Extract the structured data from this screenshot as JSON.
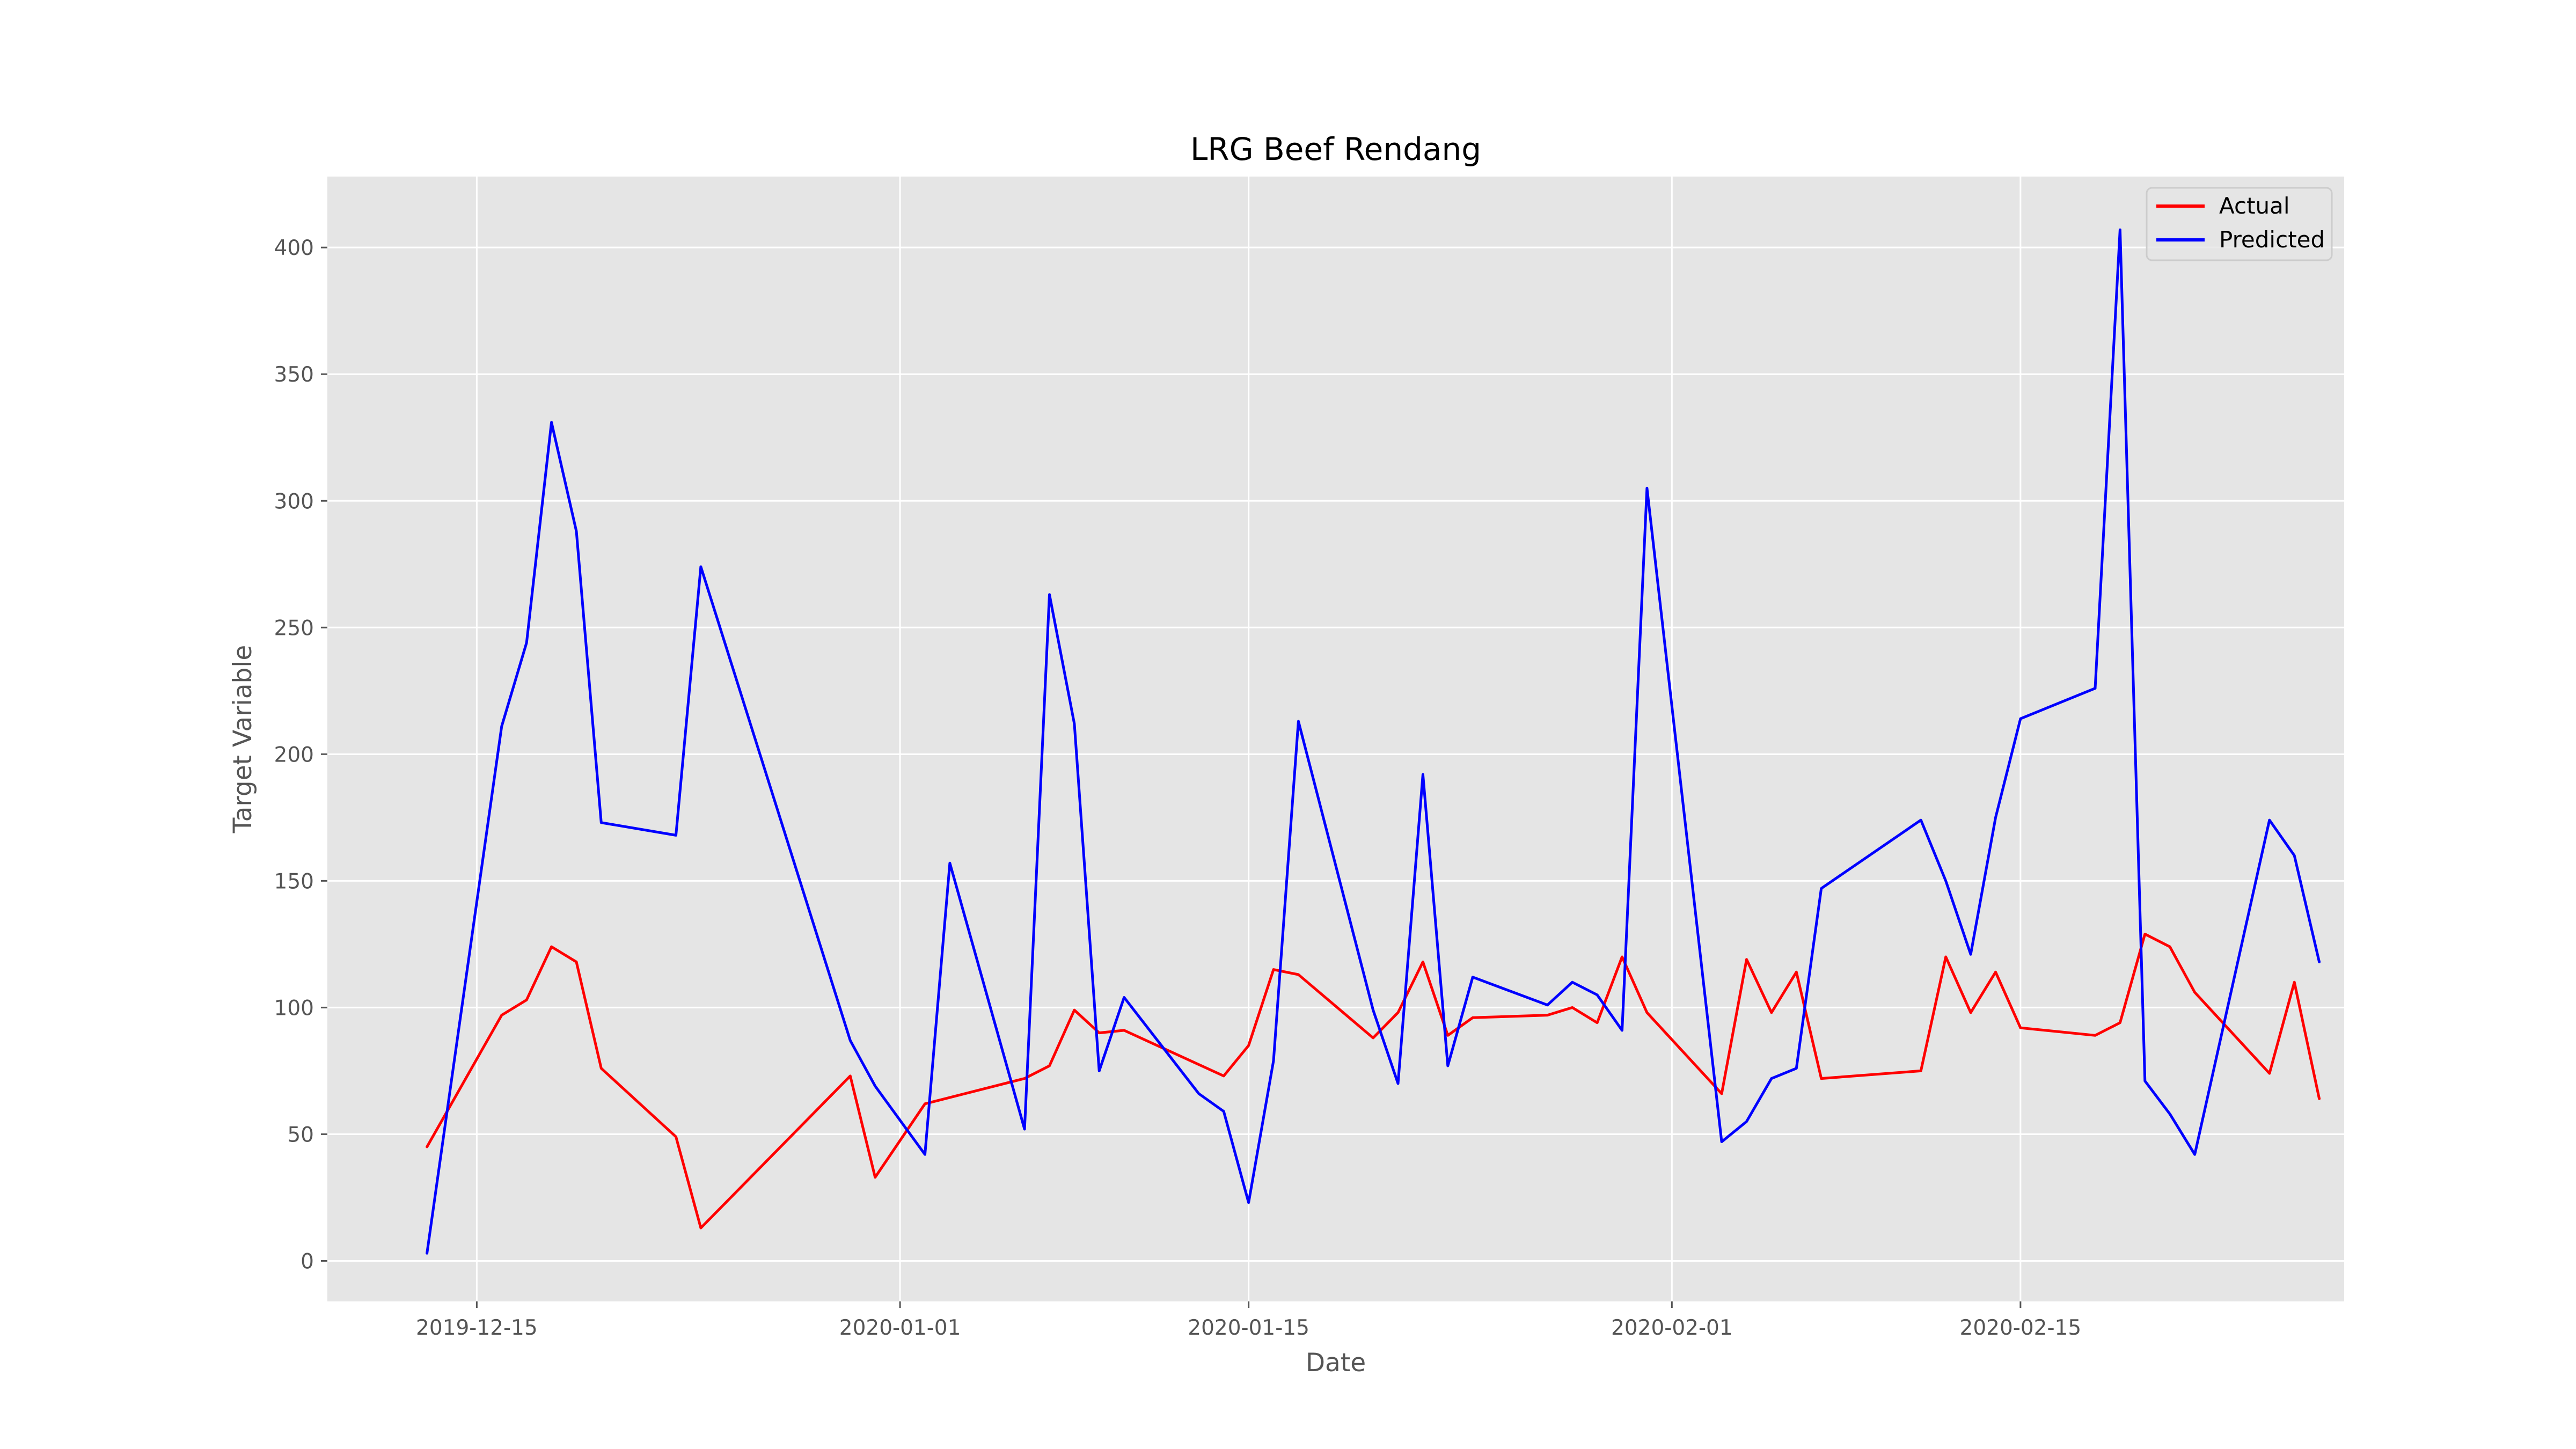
{
  "chart_data": {
    "type": "line",
    "title": "LRG Beef Rendang",
    "xlabel": "Date",
    "ylabel": "Target Variable",
    "x_tick_labels": [
      "2019-12-15",
      "2020-01-01",
      "2020-01-15",
      "2020-02-01",
      "2020-02-15"
    ],
    "y_tick_labels": [
      "0",
      "50",
      "100",
      "150",
      "200",
      "250",
      "300",
      "350",
      "400"
    ],
    "xlim": [
      "2019-12-09",
      "2020-02-28"
    ],
    "ylim": [
      -16,
      428
    ],
    "grid": true,
    "legend_position": "top-right",
    "colors": {
      "background": "#e5e5e5",
      "grid": "#ffffff",
      "Actual": "#ff0000",
      "Predicted": "#0000ff"
    },
    "series": [
      {
        "name": "Actual",
        "color": "#ff0000",
        "points": [
          [
            "2019-12-13",
            45
          ],
          [
            "2019-12-16",
            97
          ],
          [
            "2019-12-17",
            103
          ],
          [
            "2019-12-18",
            124
          ],
          [
            "2019-12-19",
            118
          ],
          [
            "2019-12-20",
            76
          ],
          [
            "2019-12-23",
            49
          ],
          [
            "2019-12-24",
            13
          ],
          [
            "2019-12-30",
            73
          ],
          [
            "2019-12-31",
            33
          ],
          [
            "2020-01-02",
            62
          ],
          [
            "2020-01-06",
            72
          ],
          [
            "2020-01-07",
            77
          ],
          [
            "2020-01-08",
            99
          ],
          [
            "2020-01-09",
            90
          ],
          [
            "2020-01-10",
            91
          ],
          [
            "2020-01-14",
            73
          ],
          [
            "2020-01-15",
            85
          ],
          [
            "2020-01-16",
            115
          ],
          [
            "2020-01-17",
            113
          ],
          [
            "2020-01-20",
            88
          ],
          [
            "2020-01-21",
            98
          ],
          [
            "2020-01-22",
            118
          ],
          [
            "2020-01-23",
            89
          ],
          [
            "2020-01-24",
            96
          ],
          [
            "2020-01-27",
            97
          ],
          [
            "2020-01-28",
            100
          ],
          [
            "2020-01-29",
            94
          ],
          [
            "2020-01-30",
            120
          ],
          [
            "2020-01-31",
            98
          ],
          [
            "2020-02-03",
            66
          ],
          [
            "2020-02-04",
            119
          ],
          [
            "2020-02-05",
            98
          ],
          [
            "2020-02-06",
            114
          ],
          [
            "2020-02-07",
            72
          ],
          [
            "2020-02-11",
            75
          ],
          [
            "2020-02-12",
            120
          ],
          [
            "2020-02-13",
            98
          ],
          [
            "2020-02-14",
            114
          ],
          [
            "2020-02-15",
            92
          ],
          [
            "2020-02-18",
            89
          ],
          [
            "2020-02-19",
            94
          ],
          [
            "2020-02-20",
            129
          ],
          [
            "2020-02-21",
            124
          ],
          [
            "2020-02-22",
            106
          ],
          [
            "2020-02-25",
            74
          ],
          [
            "2020-02-26",
            110
          ],
          [
            "2020-02-27",
            64
          ]
        ]
      },
      {
        "name": "Predicted",
        "color": "#0000ff",
        "points": [
          [
            "2019-12-13",
            3
          ],
          [
            "2019-12-16",
            211
          ],
          [
            "2019-12-17",
            244
          ],
          [
            "2019-12-18",
            331
          ],
          [
            "2019-12-19",
            288
          ],
          [
            "2019-12-20",
            173
          ],
          [
            "2019-12-23",
            168
          ],
          [
            "2019-12-24",
            274
          ],
          [
            "2019-12-30",
            87
          ],
          [
            "2019-12-31",
            69
          ],
          [
            "2020-01-02",
            42
          ],
          [
            "2020-01-03",
            157
          ],
          [
            "2020-01-06",
            52
          ],
          [
            "2020-01-07",
            263
          ],
          [
            "2020-01-08",
            212
          ],
          [
            "2020-01-09",
            75
          ],
          [
            "2020-01-10",
            104
          ],
          [
            "2020-01-13",
            66
          ],
          [
            "2020-01-14",
            59
          ],
          [
            "2020-01-15",
            23
          ],
          [
            "2020-01-16",
            79
          ],
          [
            "2020-01-17",
            213
          ],
          [
            "2020-01-20",
            99
          ],
          [
            "2020-01-21",
            70
          ],
          [
            "2020-01-22",
            192
          ],
          [
            "2020-01-23",
            77
          ],
          [
            "2020-01-24",
            112
          ],
          [
            "2020-01-27",
            101
          ],
          [
            "2020-01-28",
            110
          ],
          [
            "2020-01-29",
            105
          ],
          [
            "2020-01-30",
            91
          ],
          [
            "2020-01-31",
            305
          ],
          [
            "2020-02-03",
            47
          ],
          [
            "2020-02-04",
            55
          ],
          [
            "2020-02-05",
            72
          ],
          [
            "2020-02-06",
            76
          ],
          [
            "2020-02-07",
            147
          ],
          [
            "2020-02-11",
            174
          ],
          [
            "2020-02-12",
            150
          ],
          [
            "2020-02-13",
            121
          ],
          [
            "2020-02-14",
            175
          ],
          [
            "2020-02-15",
            214
          ],
          [
            "2020-02-18",
            226
          ],
          [
            "2020-02-19",
            407
          ],
          [
            "2020-02-20",
            71
          ],
          [
            "2020-02-21",
            58
          ],
          [
            "2020-02-22",
            42
          ],
          [
            "2020-02-25",
            174
          ],
          [
            "2020-02-26",
            160
          ],
          [
            "2020-02-27",
            118
          ]
        ]
      }
    ]
  }
}
